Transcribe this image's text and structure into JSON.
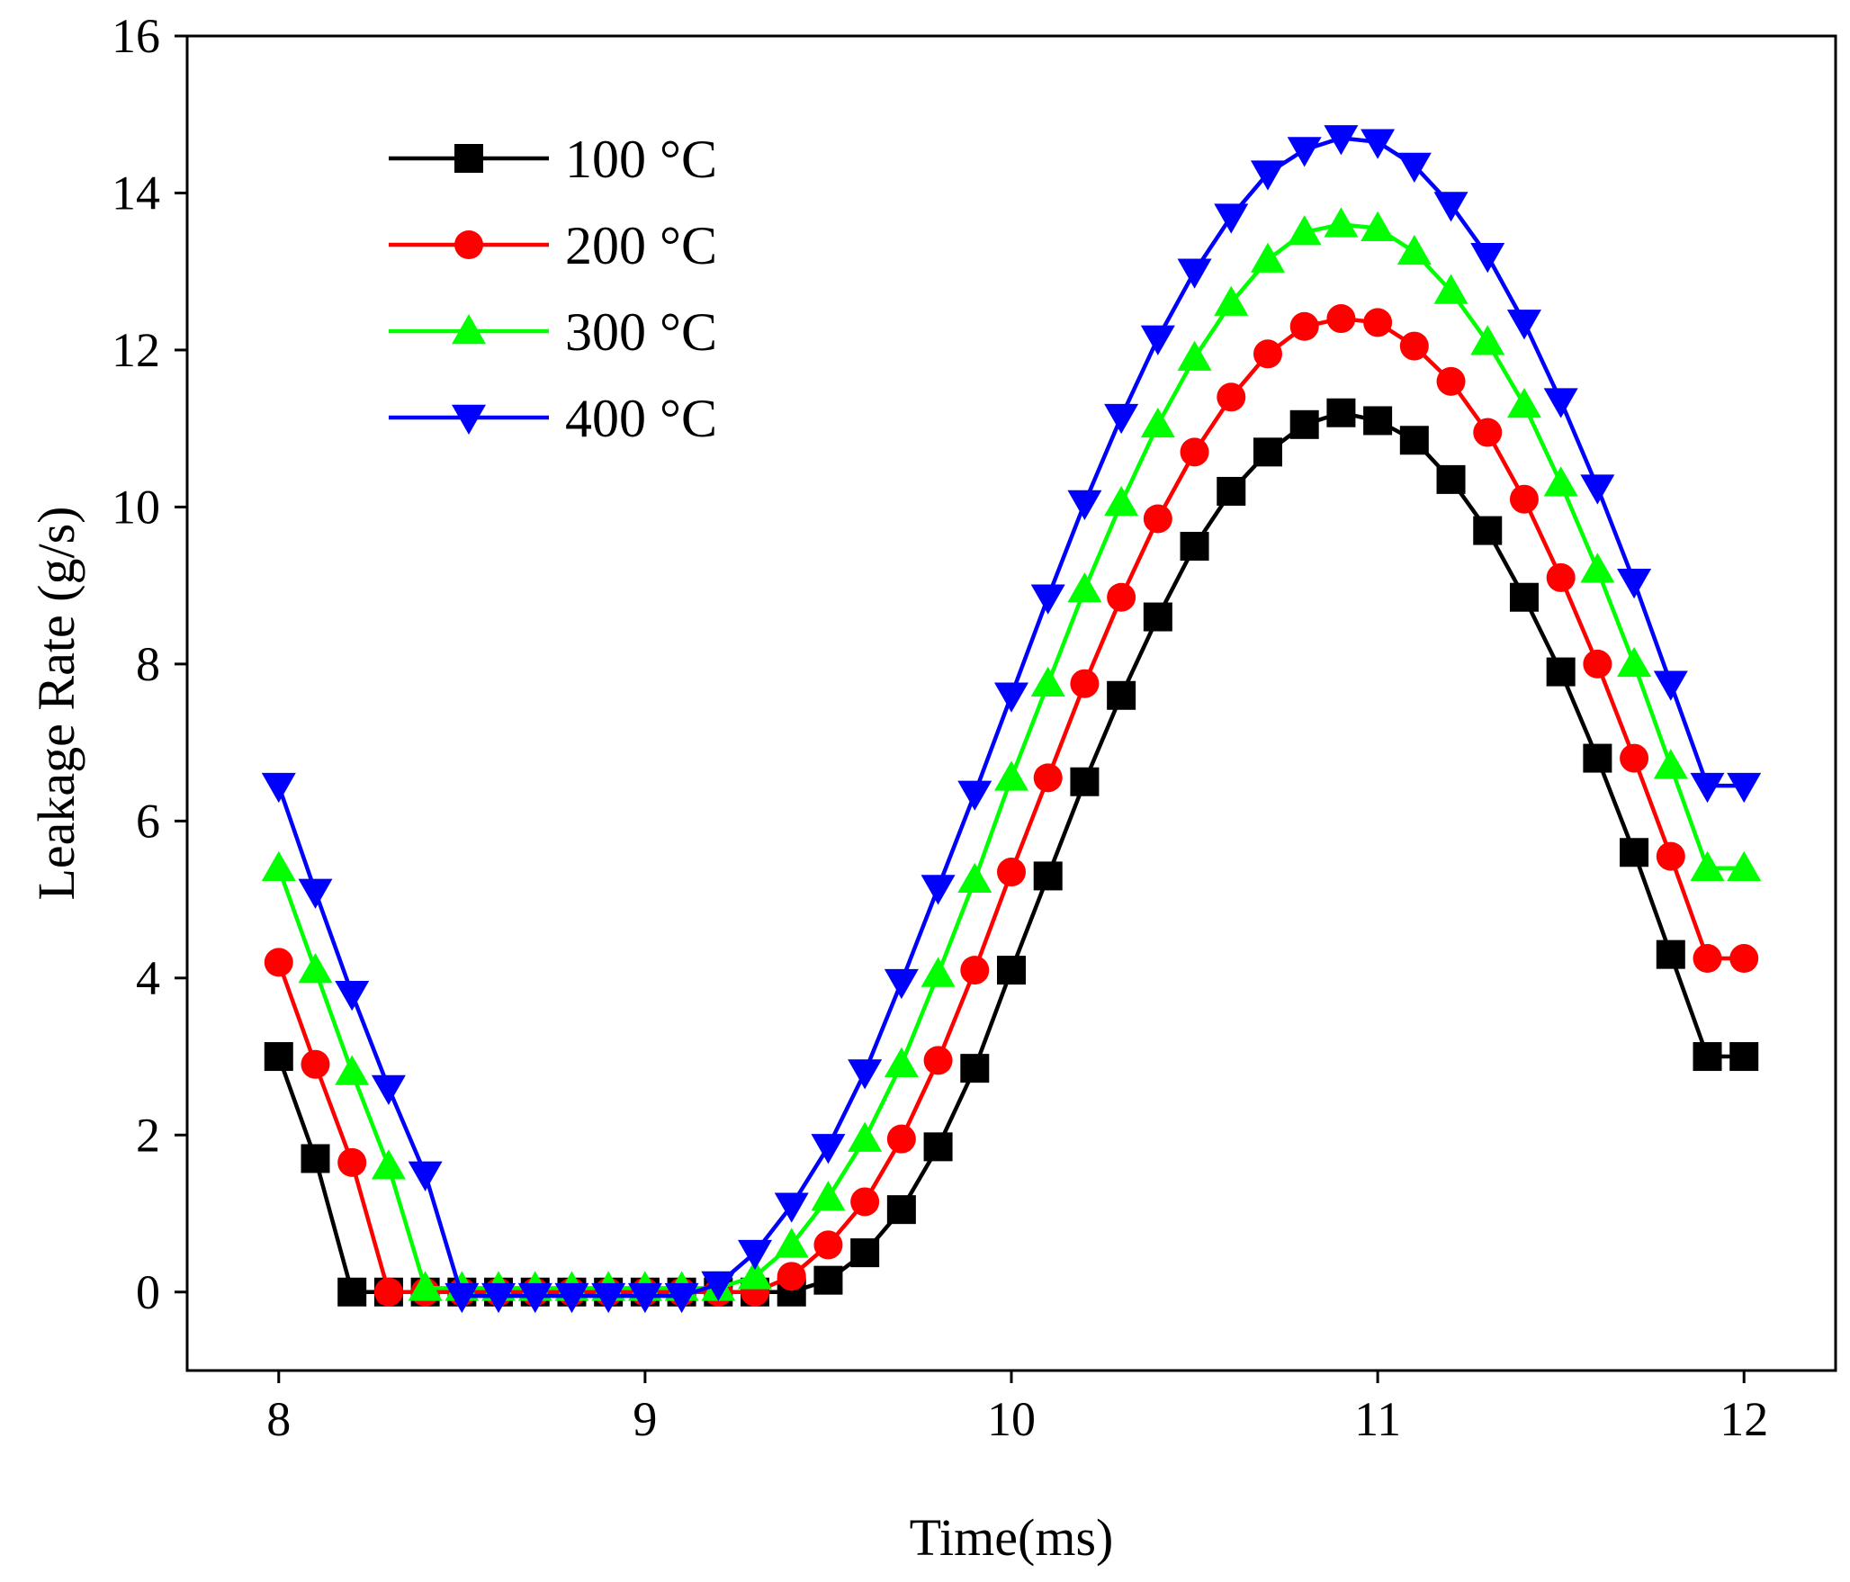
{
  "chart_data": {
    "type": "line",
    "title": "",
    "xlabel": "Time(ms)",
    "ylabel": "Leakage Rate (g/s)",
    "xlim": [
      7.75,
      12.25
    ],
    "ylim": [
      -1,
      16
    ],
    "xticks": [
      8,
      9,
      10,
      11,
      12
    ],
    "yticks": [
      0,
      2,
      4,
      6,
      8,
      10,
      12,
      14,
      16
    ],
    "xtick_labels": [
      "8",
      "9",
      "10",
      "11",
      "12"
    ],
    "ytick_labels": [
      "0",
      "2",
      "4",
      "6",
      "8",
      "10",
      "12",
      "14",
      "16"
    ],
    "legend_position": "top-left",
    "grid": false,
    "x": [
      8.0,
      8.1,
      8.2,
      8.3,
      8.4,
      8.5,
      8.6,
      8.7,
      8.8,
      8.9,
      9.0,
      9.1,
      9.2,
      9.3,
      9.4,
      9.5,
      9.6,
      9.7,
      9.8,
      9.9,
      10.0,
      10.1,
      10.2,
      10.3,
      10.4,
      10.5,
      10.6,
      10.7,
      10.8,
      10.9,
      11.0,
      11.1,
      11.2,
      11.3,
      11.4,
      11.5,
      11.6,
      11.7,
      11.8,
      11.9,
      12.0
    ],
    "series": [
      {
        "name": "100 °C",
        "color": "#000000",
        "marker": "square",
        "values": [
          3.0,
          1.7,
          0.0,
          0.0,
          0.0,
          0.0,
          0.0,
          0.0,
          0.0,
          0.0,
          0.0,
          0.0,
          0.0,
          0.0,
          0.0,
          0.15,
          0.5,
          1.05,
          1.85,
          2.85,
          4.1,
          5.3,
          6.5,
          7.6,
          8.6,
          9.5,
          10.2,
          10.7,
          11.05,
          11.2,
          11.1,
          10.85,
          10.35,
          9.7,
          8.85,
          7.9,
          6.8,
          5.6,
          4.3,
          3.0,
          3.0
        ]
      },
      {
        "name": "200 °C",
        "color": "#ff0000",
        "marker": "circle",
        "values": [
          4.2,
          2.9,
          1.65,
          0.0,
          0.0,
          0.0,
          0.0,
          0.0,
          0.0,
          0.0,
          0.0,
          0.0,
          0.0,
          0.0,
          0.2,
          0.6,
          1.15,
          1.95,
          2.95,
          4.1,
          5.35,
          6.55,
          7.75,
          8.85,
          9.85,
          10.7,
          11.4,
          11.95,
          12.3,
          12.4,
          12.35,
          12.05,
          11.6,
          10.95,
          10.1,
          9.1,
          8.0,
          6.8,
          5.55,
          4.25,
          4.25
        ]
      },
      {
        "name": "300 °C",
        "color": "#00ff00",
        "marker": "triangle-up",
        "values": [
          5.4,
          4.1,
          2.8,
          1.6,
          0.05,
          0.05,
          0.05,
          0.05,
          0.05,
          0.05,
          0.05,
          0.05,
          0.05,
          0.2,
          0.6,
          1.2,
          1.95,
          2.9,
          4.05,
          5.25,
          6.55,
          7.75,
          8.95,
          10.05,
          11.05,
          11.9,
          12.6,
          13.15,
          13.5,
          13.6,
          13.55,
          13.25,
          12.75,
          12.1,
          11.3,
          10.3,
          9.2,
          8.0,
          6.7,
          5.4,
          5.4
        ]
      },
      {
        "name": "400 °C",
        "color": "#0000ff",
        "marker": "triangle-down",
        "values": [
          6.45,
          5.1,
          3.8,
          2.6,
          1.5,
          -0.05,
          -0.05,
          -0.05,
          -0.05,
          -0.05,
          -0.05,
          -0.05,
          0.1,
          0.5,
          1.1,
          1.85,
          2.8,
          3.95,
          5.15,
          6.35,
          7.6,
          8.85,
          10.05,
          11.15,
          12.15,
          13.0,
          13.7,
          14.25,
          14.55,
          14.7,
          14.65,
          14.35,
          13.85,
          13.2,
          12.35,
          11.35,
          10.25,
          9.05,
          7.75,
          6.45,
          6.45
        ]
      }
    ]
  }
}
